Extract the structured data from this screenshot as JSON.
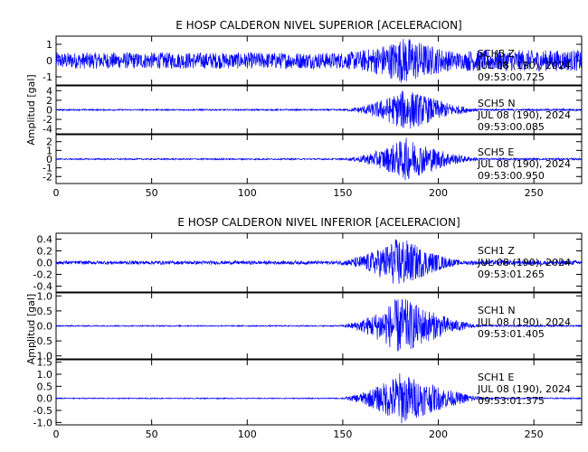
{
  "chart_data": [
    {
      "type": "line",
      "title": "E HOSP CALDERON NIVEL SUPERIOR [ACELERACION]",
      "ylabel": "Amplitud [gal]",
      "xlim": [
        0,
        275
      ],
      "x_ticks": [
        "0",
        "50",
        "100",
        "150",
        "200",
        "250"
      ],
      "color": "#0000ff",
      "series": [
        {
          "name": "SCH5 Z",
          "annotation": [
            "SCH5 Z",
            "JUL 08 (190), 2024",
            "09:53:00.725"
          ],
          "ylim": [
            -1.5,
            1.5
          ],
          "y_ticks": [
            "1",
            "0",
            "-1"
          ],
          "envelope": {
            "background": 0.5,
            "event_start": 150,
            "event_peak": 183,
            "event_end": 215,
            "peak": 1.5
          }
        },
        {
          "name": "SCH5 N",
          "annotation": [
            "SCH5 N",
            "JUL 08 (190), 2024",
            "09:53:00.085"
          ],
          "ylim": [
            -5,
            5
          ],
          "y_ticks": [
            "4",
            "2",
            "0",
            "-2",
            "-4"
          ],
          "envelope": {
            "background": 0.15,
            "event_start": 150,
            "event_peak": 183,
            "event_end": 225,
            "peak": 4.5
          }
        },
        {
          "name": "SCH5 E",
          "annotation": [
            "SCH5 E",
            "JUL 08 (190), 2024",
            "09:53:00.950"
          ],
          "ylim": [
            -2.8,
            2.8
          ],
          "y_ticks": [
            "2",
            "1",
            "0",
            "-1",
            "-2"
          ],
          "envelope": {
            "background": 0.08,
            "event_start": 150,
            "event_peak": 183,
            "event_end": 225,
            "peak": 2.5
          }
        }
      ]
    },
    {
      "type": "line",
      "title": "E HOSP CALDERON NIVEL INFERIOR [ACELERACION]",
      "ylabel": "Amplitud [gal]",
      "xlim": [
        0,
        275
      ],
      "x_ticks": [
        "0",
        "50",
        "100",
        "150",
        "200",
        "250"
      ],
      "color": "#0000ff",
      "series": [
        {
          "name": "SCH1 Z",
          "annotation": [
            "SCH1 Z",
            "JUL 08 (190), 2024",
            "09:53:01.265"
          ],
          "ylim": [
            -0.5,
            0.5
          ],
          "y_ticks": [
            "0.4",
            "0.2",
            "0.0",
            "-0.2",
            "-0.4"
          ],
          "envelope": {
            "background": 0.03,
            "event_start": 147,
            "event_peak": 180,
            "event_end": 215,
            "peak": 0.45
          }
        },
        {
          "name": "SCH1 N",
          "annotation": [
            "SCH1 N",
            "JUL 08 (190), 2024",
            "09:53:01.405"
          ],
          "ylim": [
            -1.1,
            1.1
          ],
          "y_ticks": [
            "1.0",
            "0.5",
            "0.0",
            "-0.5",
            "-1.0"
          ],
          "envelope": {
            "background": 0.02,
            "event_start": 148,
            "event_peak": 180,
            "event_end": 225,
            "peak": 1.0
          }
        },
        {
          "name": "SCH1 E",
          "annotation": [
            "SCH1 E",
            "JUL 08 (190), 2024",
            "09:53:01.375"
          ],
          "ylim": [
            -1.1,
            1.6
          ],
          "y_ticks": [
            "1.5",
            "1.0",
            "0.5",
            "0.0",
            "-0.5",
            "-1.0"
          ],
          "envelope": {
            "background": 0.02,
            "event_start": 148,
            "event_peak": 180,
            "event_end": 230,
            "peak": 1.1
          }
        }
      ]
    }
  ]
}
